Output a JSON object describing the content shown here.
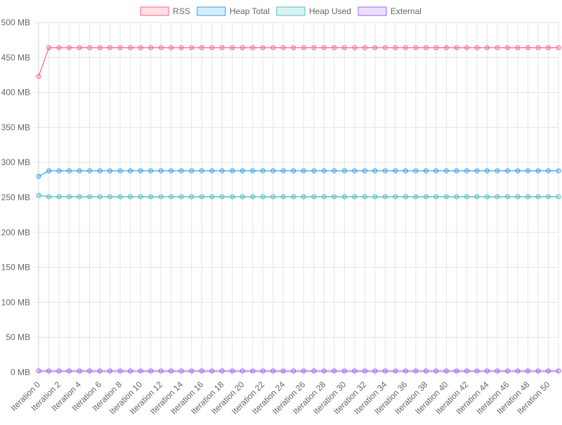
{
  "chart_data": {
    "type": "line",
    "title": "",
    "xlabel": "",
    "ylabel": "",
    "ylim": [
      0,
      500
    ],
    "y_ticks": [
      0,
      50,
      100,
      150,
      200,
      250,
      300,
      350,
      400,
      450,
      500
    ],
    "y_tick_suffix": " MB",
    "x_label_prefix": "Iteration ",
    "x_label_step": 2,
    "x": [
      0,
      1,
      2,
      3,
      4,
      5,
      6,
      7,
      8,
      9,
      10,
      11,
      12,
      13,
      14,
      15,
      16,
      17,
      18,
      19,
      20,
      21,
      22,
      23,
      24,
      25,
      26,
      27,
      28,
      29,
      30,
      31,
      32,
      33,
      34,
      35,
      36,
      37,
      38,
      39,
      40,
      41,
      42,
      43,
      44,
      45,
      46,
      47,
      48,
      49,
      50,
      51
    ],
    "grid": true,
    "legend_position": "top",
    "series": [
      {
        "name": "RSS",
        "color": "#ff6384",
        "fill": "rgba(255,99,132,0.2)",
        "values": [
          423,
          464,
          464,
          464,
          464,
          464,
          464,
          464,
          464,
          464,
          464,
          464,
          464,
          464,
          464,
          464,
          464,
          464,
          464,
          464,
          464,
          464,
          464,
          464,
          464,
          464,
          464,
          464,
          464,
          464,
          464,
          464,
          464,
          464,
          464,
          464,
          464,
          464,
          464,
          464,
          464,
          464,
          464,
          464,
          464,
          464,
          464,
          464,
          464,
          464,
          464,
          464
        ]
      },
      {
        "name": "Heap Total",
        "color": "#36a2eb",
        "fill": "rgba(54,162,235,0.2)",
        "values": [
          280,
          288,
          288,
          288,
          288,
          288,
          288,
          288,
          288,
          288,
          288,
          288,
          288,
          288,
          288,
          288,
          288,
          288,
          288,
          288,
          288,
          288,
          288,
          288,
          288,
          288,
          288,
          288,
          288,
          288,
          288,
          288,
          288,
          288,
          288,
          288,
          288,
          288,
          288,
          288,
          288,
          288,
          288,
          288,
          288,
          288,
          288,
          288,
          288,
          288,
          288,
          288
        ]
      },
      {
        "name": "Heap Used",
        "color": "#4bc0c0",
        "fill": "rgba(75,192,192,0.2)",
        "values": [
          253,
          251,
          251,
          251,
          251,
          251,
          251,
          251,
          251,
          251,
          251,
          251,
          251,
          251,
          251,
          251,
          251,
          251,
          251,
          251,
          251,
          251,
          251,
          251,
          251,
          251,
          251,
          251,
          251,
          251,
          251,
          251,
          251,
          251,
          251,
          251,
          251,
          251,
          251,
          251,
          251,
          251,
          251,
          251,
          251,
          251,
          251,
          251,
          251,
          251,
          251,
          251
        ]
      },
      {
        "name": "External",
        "color": "#9966ff",
        "fill": "rgba(153,102,255,0.2)",
        "values": [
          2,
          2,
          2,
          2,
          2,
          2,
          2,
          2,
          2,
          2,
          2,
          2,
          2,
          2,
          2,
          2,
          2,
          2,
          2,
          2,
          2,
          2,
          2,
          2,
          2,
          2,
          2,
          2,
          2,
          2,
          2,
          2,
          2,
          2,
          2,
          2,
          2,
          2,
          2,
          2,
          2,
          2,
          2,
          2,
          2,
          2,
          2,
          2,
          2,
          2,
          2,
          2
        ]
      }
    ]
  }
}
